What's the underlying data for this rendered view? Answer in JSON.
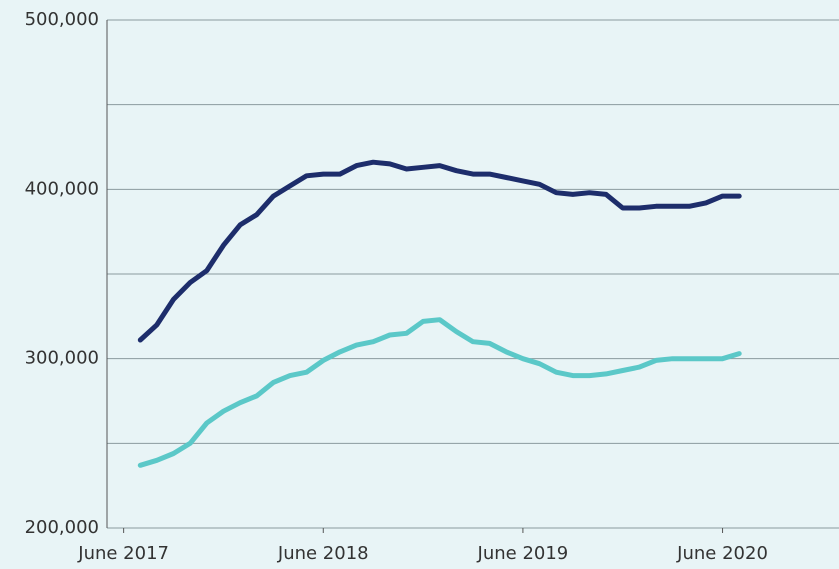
{
  "chart_data": {
    "type": "line",
    "x": [
      "2017-07",
      "2017-08",
      "2017-09",
      "2017-10",
      "2017-11",
      "2017-12",
      "2018-01",
      "2018-02",
      "2018-03",
      "2018-04",
      "2018-05",
      "2018-06",
      "2018-07",
      "2018-08",
      "2018-09",
      "2018-10",
      "2018-11",
      "2018-12",
      "2019-01",
      "2019-02",
      "2019-03",
      "2019-04",
      "2019-05",
      "2019-06",
      "2019-07",
      "2019-08",
      "2019-09",
      "2019-10",
      "2019-11",
      "2019-12",
      "2020-01",
      "2020-02",
      "2020-03",
      "2020-04",
      "2020-05",
      "2020-06",
      "2020-07"
    ],
    "series": [
      {
        "color": "#1d2d6b",
        "values": [
          311000,
          320000,
          335000,
          345000,
          352000,
          367000,
          379000,
          385000,
          396000,
          402000,
          408000,
          409000,
          409000,
          414000,
          416000,
          415000,
          412000,
          413000,
          414000,
          411000,
          409000,
          409000,
          407000,
          405000,
          403000,
          398000,
          397000,
          398000,
          397000,
          389000,
          389000,
          390000,
          390000,
          390000,
          392000,
          396000,
          396000
        ]
      },
      {
        "color": "#5bc8c8",
        "values": [
          237000,
          240000,
          244000,
          250000,
          262000,
          269000,
          274000,
          278000,
          286000,
          290000,
          292000,
          299000,
          304000,
          308000,
          310000,
          314000,
          315000,
          322000,
          323000,
          316000,
          310000,
          309000,
          304000,
          300000,
          297000,
          292000,
          290000,
          290000,
          291000,
          293000,
          295000,
          299000,
          300000,
          300000,
          300000,
          300000,
          303000
        ]
      }
    ],
    "xlim": [
      "2017-05",
      "2021-01"
    ],
    "xticks": [
      {
        "value": "2017-06",
        "label": "June 2017"
      },
      {
        "value": "2018-06",
        "label": "June 2018"
      },
      {
        "value": "2019-06",
        "label": "June 2019"
      },
      {
        "value": "2020-06",
        "label": "June 2020"
      }
    ],
    "ylim": [
      200000,
      500000
    ],
    "yticks": [
      {
        "value": 200000,
        "label": "200,000"
      },
      {
        "value": 300000,
        "label": "300,000"
      },
      {
        "value": 400000,
        "label": "400,000"
      },
      {
        "value": 500000,
        "label": "500,000"
      }
    ],
    "minor_yticks": [
      250000,
      350000,
      450000
    ],
    "grid": true
  }
}
